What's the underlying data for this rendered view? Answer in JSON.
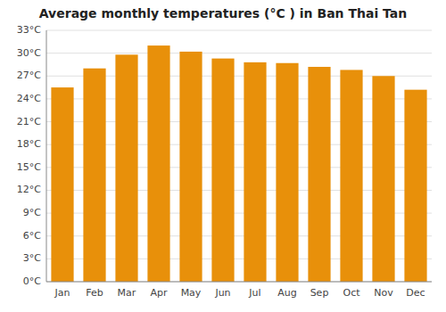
{
  "chart_data": {
    "type": "bar",
    "title": "Average monthly temperatures (°C ) in Ban Thai Tan",
    "categories": [
      "Jan",
      "Feb",
      "Mar",
      "Apr",
      "May",
      "Jun",
      "Jul",
      "Aug",
      "Sep",
      "Oct",
      "Nov",
      "Dec"
    ],
    "values": [
      25.5,
      28.0,
      29.8,
      31.0,
      30.2,
      29.3,
      28.8,
      28.7,
      28.2,
      27.8,
      27.0,
      25.2
    ],
    "color": "#E8900A",
    "ylim": [
      0,
      33
    ],
    "yticks": [
      {
        "value": 0,
        "label": "0°C"
      },
      {
        "value": 3,
        "label": "3°C"
      },
      {
        "value": 6,
        "label": "6°C"
      },
      {
        "value": 9,
        "label": "9°C"
      },
      {
        "value": 12,
        "label": "12°C"
      },
      {
        "value": 15,
        "label": "15°C"
      },
      {
        "value": 18,
        "label": "18°C"
      },
      {
        "value": 21,
        "label": "21°C"
      },
      {
        "value": 24,
        "label": "24°C"
      },
      {
        "value": 27,
        "label": "27°C"
      },
      {
        "value": 30,
        "label": "30°C"
      },
      {
        "value": 33,
        "label": "33°C"
      }
    ],
    "grid": true
  }
}
